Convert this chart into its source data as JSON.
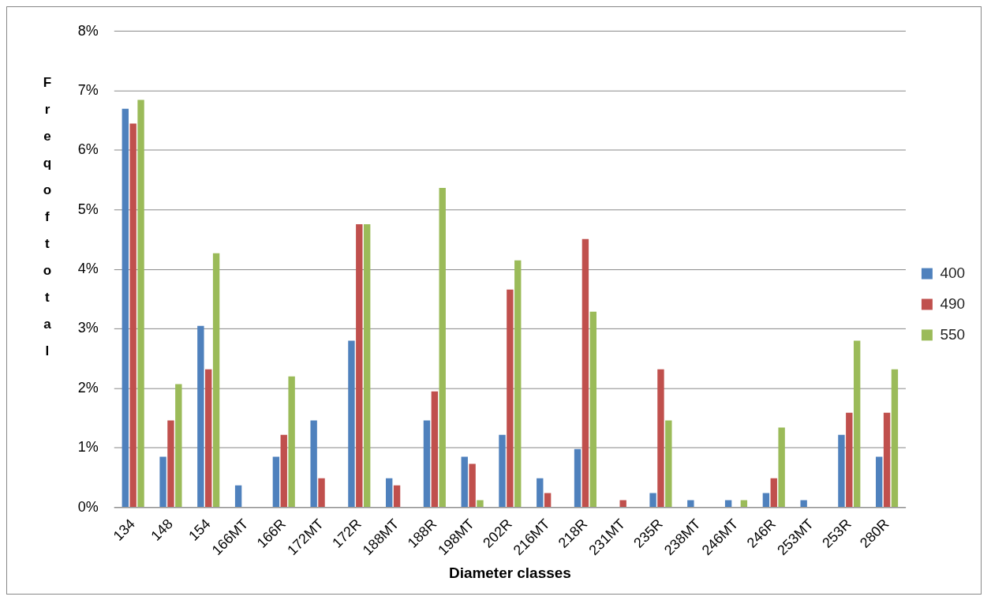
{
  "chart_data": {
    "type": "bar",
    "xlabel": "Diameter classes",
    "ylabel": "Freq of total",
    "categories": [
      "134",
      "148",
      "154",
      "166MT",
      "166R",
      "172MT",
      "172R",
      "188MT",
      "188R",
      "198MT",
      "202R",
      "216MT",
      "218R",
      "231MT",
      "235R",
      "238MT",
      "246MT",
      "246R",
      "253MT",
      "253R",
      "280R"
    ],
    "series": [
      {
        "name": "400",
        "color": "#4f81bd",
        "values": [
          6.7,
          0.85,
          3.05,
          0.37,
          0.85,
          1.46,
          2.8,
          0.49,
          1.46,
          0.85,
          1.22,
          0.49,
          0.98,
          0,
          0.24,
          0.12,
          0.12,
          0.24,
          0.12,
          1.22,
          0.85
        ]
      },
      {
        "name": "490",
        "color": "#c0504d",
        "values": [
          6.45,
          1.46,
          2.32,
          0,
          1.22,
          0.49,
          4.76,
          0.37,
          1.95,
          0.73,
          3.66,
          0.24,
          4.51,
          0.12,
          2.32,
          0,
          0,
          0.49,
          0,
          1.59,
          1.59
        ]
      },
      {
        "name": "550",
        "color": "#9bbb59",
        "values": [
          6.85,
          2.07,
          4.27,
          0,
          2.2,
          0,
          4.76,
          0,
          5.37,
          0.12,
          4.15,
          0,
          3.29,
          0,
          1.46,
          0,
          0.12,
          1.34,
          0,
          2.8,
          2.32
        ]
      }
    ],
    "ylim": [
      0,
      8
    ],
    "yticks": [
      {
        "value": 0,
        "label": "0%"
      },
      {
        "value": 1,
        "label": "1%"
      },
      {
        "value": 2,
        "label": "2%"
      },
      {
        "value": 3,
        "label": "3%"
      },
      {
        "value": 4,
        "label": "4%"
      },
      {
        "value": 5,
        "label": "5%"
      },
      {
        "value": 6,
        "label": "6%"
      },
      {
        "value": 7,
        "label": "7%"
      },
      {
        "value": 8,
        "label": "8%"
      }
    ],
    "grid": "y",
    "legend": "right"
  }
}
